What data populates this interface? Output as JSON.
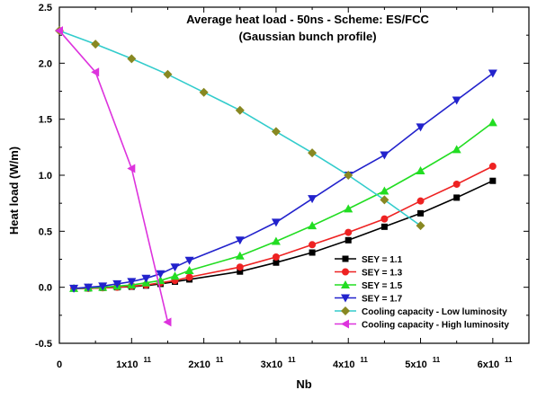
{
  "chart_data": {
    "type": "line",
    "title": "Average heat load - 50ns - Scheme: ES/FCC",
    "subtitle": "(Gaussian bunch profile)",
    "xlabel": "Nb",
    "ylabel": "Heat load (W/m)",
    "xlim": [
      0,
      650000000000.0
    ],
    "ylim": [
      -0.5,
      2.5
    ],
    "x_ticks": [
      0,
      100000000000.0,
      200000000000.0,
      300000000000.0,
      400000000000.0,
      500000000000.0,
      600000000000.0
    ],
    "x_tick_labels": [
      "0",
      "1x10",
      "2x10",
      "3x10",
      "4x10",
      "5x10",
      "6x10"
    ],
    "x_tick_exponent": "11",
    "y_ticks": [
      -0.5,
      0.0,
      0.5,
      1.0,
      1.5,
      2.0,
      2.5
    ],
    "y_tick_labels": [
      "-0.5",
      "0.0",
      "0.5",
      "1.0",
      "1.5",
      "2.0",
      "2.5"
    ],
    "legend_position": "bottom-right",
    "grid": false,
    "series": [
      {
        "name": "SEY = 1.1",
        "color": "#000000",
        "marker": "square",
        "x": [
          20000000000.0,
          40000000000.0,
          60000000000.0,
          80000000000.0,
          100000000000.0,
          120000000000.0,
          140000000000.0,
          160000000000.0,
          180000000000.0,
          250000000000.0,
          300000000000.0,
          350000000000.0,
          400000000000.0,
          450000000000.0,
          500000000000.0,
          550000000000.0,
          600000000000.0
        ],
        "y": [
          -0.01,
          -0.01,
          -0.005,
          0.0,
          0.005,
          0.015,
          0.03,
          0.05,
          0.07,
          0.14,
          0.22,
          0.31,
          0.42,
          0.54,
          0.66,
          0.8,
          0.95
        ]
      },
      {
        "name": "SEY = 1.3",
        "color": "#ee2222",
        "marker": "circle",
        "x": [
          20000000000.0,
          40000000000.0,
          60000000000.0,
          80000000000.0,
          100000000000.0,
          120000000000.0,
          140000000000.0,
          160000000000.0,
          180000000000.0,
          250000000000.0,
          300000000000.0,
          350000000000.0,
          400000000000.0,
          450000000000.0,
          500000000000.0,
          550000000000.0,
          600000000000.0
        ],
        "y": [
          -0.01,
          -0.01,
          -0.005,
          0.0,
          0.01,
          0.02,
          0.04,
          0.06,
          0.09,
          0.18,
          0.27,
          0.38,
          0.49,
          0.61,
          0.77,
          0.92,
          1.08
        ]
      },
      {
        "name": "SEY = 1.5",
        "color": "#22dd22",
        "marker": "triangle-up",
        "x": [
          20000000000.0,
          40000000000.0,
          60000000000.0,
          80000000000.0,
          100000000000.0,
          120000000000.0,
          140000000000.0,
          160000000000.0,
          180000000000.0,
          250000000000.0,
          300000000000.0,
          350000000000.0,
          400000000000.0,
          450000000000.0,
          500000000000.0,
          550000000000.0,
          600000000000.0
        ],
        "y": [
          -0.01,
          -0.005,
          0.0,
          0.01,
          0.02,
          0.04,
          0.06,
          0.1,
          0.15,
          0.28,
          0.41,
          0.55,
          0.7,
          0.86,
          1.04,
          1.23,
          1.47
        ]
      },
      {
        "name": "SEY = 1.7",
        "color": "#2222cc",
        "marker": "triangle-down",
        "x": [
          20000000000.0,
          40000000000.0,
          60000000000.0,
          80000000000.0,
          100000000000.0,
          120000000000.0,
          140000000000.0,
          160000000000.0,
          180000000000.0,
          250000000000.0,
          300000000000.0,
          350000000000.0,
          400000000000.0,
          450000000000.0,
          500000000000.0,
          550000000000.0,
          600000000000.0
        ],
        "y": [
          -0.01,
          0.0,
          0.01,
          0.03,
          0.05,
          0.08,
          0.12,
          0.18,
          0.24,
          0.42,
          0.58,
          0.79,
          1.0,
          1.18,
          1.43,
          1.67,
          1.91
        ]
      },
      {
        "name": "Cooling capacity - Low luminosity",
        "color": "#33cccc",
        "marker": "diamond",
        "marker_color": "#888822",
        "x": [
          0,
          50000000000.0,
          100000000000.0,
          150000000000.0,
          200000000000.0,
          250000000000.0,
          300000000000.0,
          350000000000.0,
          400000000000.0,
          450000000000.0,
          500000000000.0
        ],
        "y": [
          2.29,
          2.17,
          2.04,
          1.9,
          1.74,
          1.58,
          1.39,
          1.2,
          1.0,
          0.78,
          0.55
        ]
      },
      {
        "name": "Cooling capacity - High luminosity",
        "color": "#dd33dd",
        "marker": "triangle-left",
        "x": [
          0,
          50000000000.0,
          100000000000.0,
          150000000000.0
        ],
        "y": [
          2.29,
          1.92,
          1.06,
          -0.31
        ]
      }
    ]
  }
}
